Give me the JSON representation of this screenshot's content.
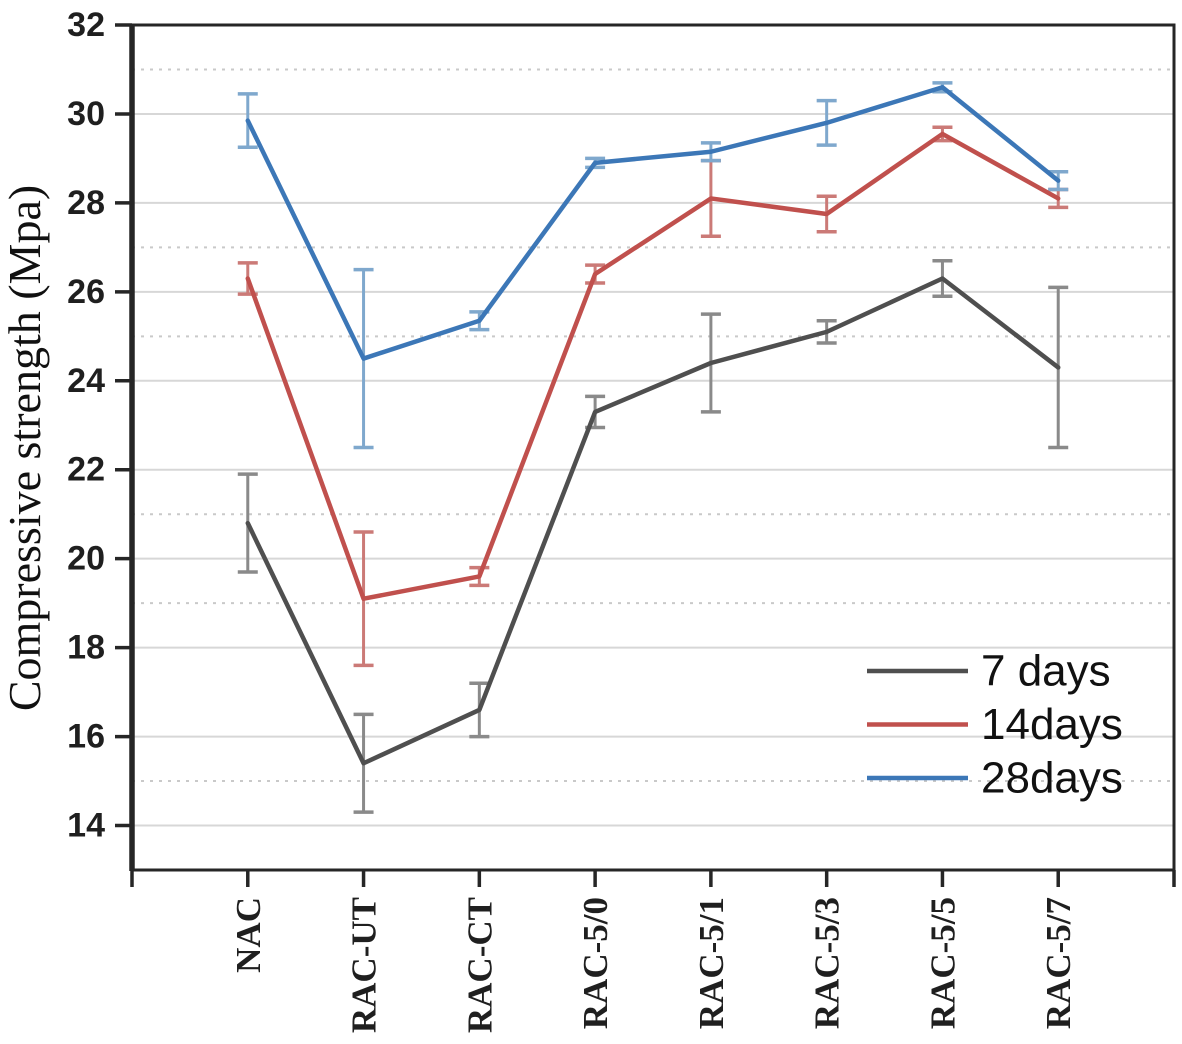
{
  "chart_data": {
    "type": "line",
    "title": "",
    "ylabel": "Compressive strength (Mpa)",
    "xlabel": "",
    "categories": [
      "NAC",
      "RAC-UT",
      "RAC-CT",
      "RAC-5/0",
      "RAC-5/1",
      "RAC-5/3",
      "RAC-5/5",
      "RAC-5/7"
    ],
    "ylim": [
      13.0,
      32
    ],
    "yticks": [
      14,
      16,
      18,
      20,
      22,
      24,
      26,
      28,
      30,
      32
    ],
    "minor_dotted_gridlines": [
      15,
      19,
      21,
      25,
      27,
      31
    ],
    "grid": "horizontal",
    "legend_position": "lower-right",
    "series": [
      {
        "name": "7 days",
        "color": "#4f4f4f",
        "error_color": "#8a8a8a",
        "values": [
          20.8,
          15.4,
          16.6,
          23.3,
          24.4,
          25.1,
          26.3,
          24.3
        ],
        "errors": [
          1.1,
          1.1,
          0.6,
          0.35,
          1.1,
          0.25,
          0.4,
          1.8
        ]
      },
      {
        "name": "14days",
        "color": "#c0504d",
        "error_color": "#cb7a77",
        "values": [
          26.3,
          19.1,
          19.6,
          26.4,
          28.1,
          27.75,
          29.55,
          28.1
        ],
        "errors": [
          0.35,
          1.5,
          0.2,
          0.2,
          0.85,
          0.4,
          0.15,
          0.2
        ]
      },
      {
        "name": "28days",
        "color": "#3c77b7",
        "error_color": "#7fa8cd",
        "values": [
          29.85,
          24.5,
          25.35,
          28.9,
          29.15,
          29.8,
          30.6,
          28.5
        ],
        "errors": [
          0.6,
          2.0,
          0.2,
          0.1,
          0.2,
          0.5,
          0.1,
          0.2
        ]
      }
    ],
    "axis_color": "#262626",
    "major_grid_color": "#d7d7d7",
    "minor_grid_color": "#c9c9c9",
    "background_color": "#ffffff"
  }
}
